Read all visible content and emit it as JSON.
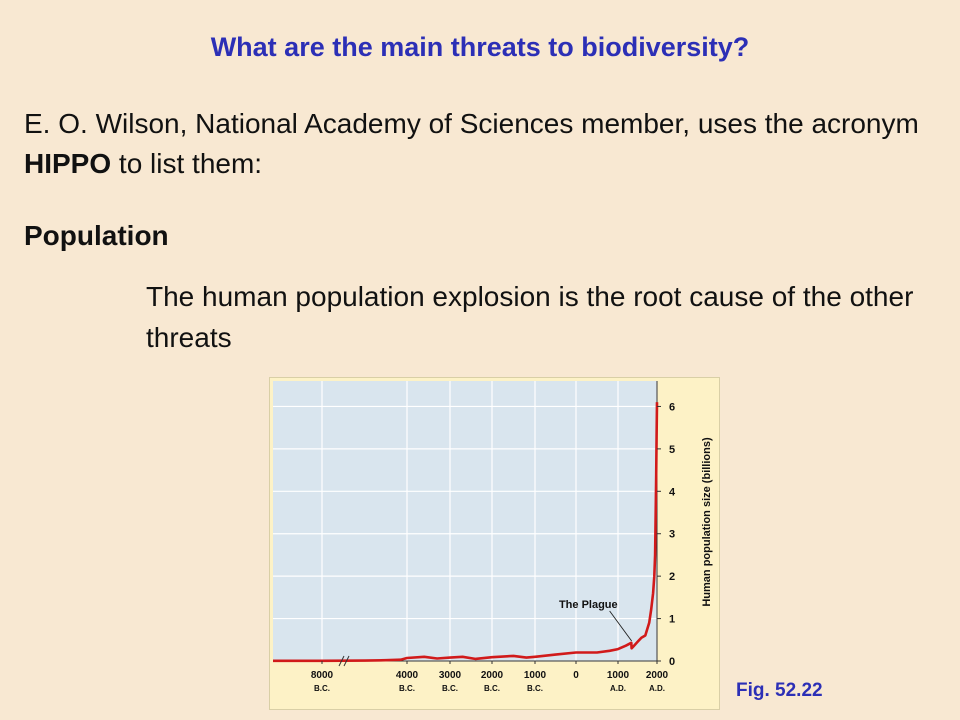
{
  "slide": {
    "title": "What are the main threats to biodiversity?",
    "intro_pre": "E. O. Wilson, National Academy of Sciences member, uses the acronym ",
    "intro_bold": "HIPPO",
    "intro_post": " to list them:",
    "subhead": "Population",
    "body": "The human population explosion is the root cause of the other threats",
    "fig_caption": "Fig. 52.22"
  },
  "colors": {
    "title": "#2c2fb6",
    "plot_bg": "#d9e5ee",
    "figure_bg": "#fdf2c6",
    "line": "#d11a1a",
    "grid": "#ffffff"
  },
  "chart_data": {
    "type": "line",
    "xlabel": "",
    "ylabel": "Human population size (billions)",
    "x_units": "year",
    "x_ticks": [
      {
        "value": -8000,
        "top": "8000",
        "bottom": "B.C."
      },
      {
        "value": -4000,
        "top": "4000",
        "bottom": "B.C."
      },
      {
        "value": -3000,
        "top": "3000",
        "bottom": "B.C."
      },
      {
        "value": -2000,
        "top": "2000",
        "bottom": "B.C."
      },
      {
        "value": -1000,
        "top": "1000",
        "bottom": "B.C."
      },
      {
        "value": 0,
        "top": "0",
        "bottom": ""
      },
      {
        "value": 1000,
        "top": "1000",
        "bottom": "A.D."
      },
      {
        "value": 2000,
        "top": "2000",
        "bottom": "A.D."
      }
    ],
    "y_ticks": [
      "0",
      "1",
      "2",
      "3",
      "4",
      "5",
      "6"
    ],
    "ylim": [
      0,
      6.6
    ],
    "axis_break": true,
    "axis_position": "right",
    "grid": true,
    "annotation": {
      "text": "The Plague",
      "x": 1350,
      "y": 0.4
    },
    "series": [
      {
        "x": [
          -9000,
          -8000,
          -6000,
          -5000,
          -4300,
          -4000,
          -3600,
          -3300,
          -3000,
          -2700,
          -2400,
          -2000,
          -1500,
          -1200,
          -1000,
          -500,
          0,
          500,
          800,
          1000,
          1200,
          1340,
          1350,
          1400,
          1500,
          1600,
          1700,
          1800,
          1850,
          1900,
          1930,
          1950,
          1960,
          1970,
          1980,
          1990,
          2000
        ],
        "y": [
          0.005,
          0.005,
          0.01,
          0.02,
          0.03,
          0.07,
          0.1,
          0.06,
          0.08,
          0.1,
          0.05,
          0.09,
          0.12,
          0.08,
          0.1,
          0.15,
          0.2,
          0.2,
          0.24,
          0.28,
          0.36,
          0.43,
          0.3,
          0.35,
          0.45,
          0.55,
          0.6,
          0.9,
          1.2,
          1.6,
          2.0,
          2.5,
          3.0,
          3.7,
          4.4,
          5.3,
          6.1
        ]
      }
    ]
  }
}
